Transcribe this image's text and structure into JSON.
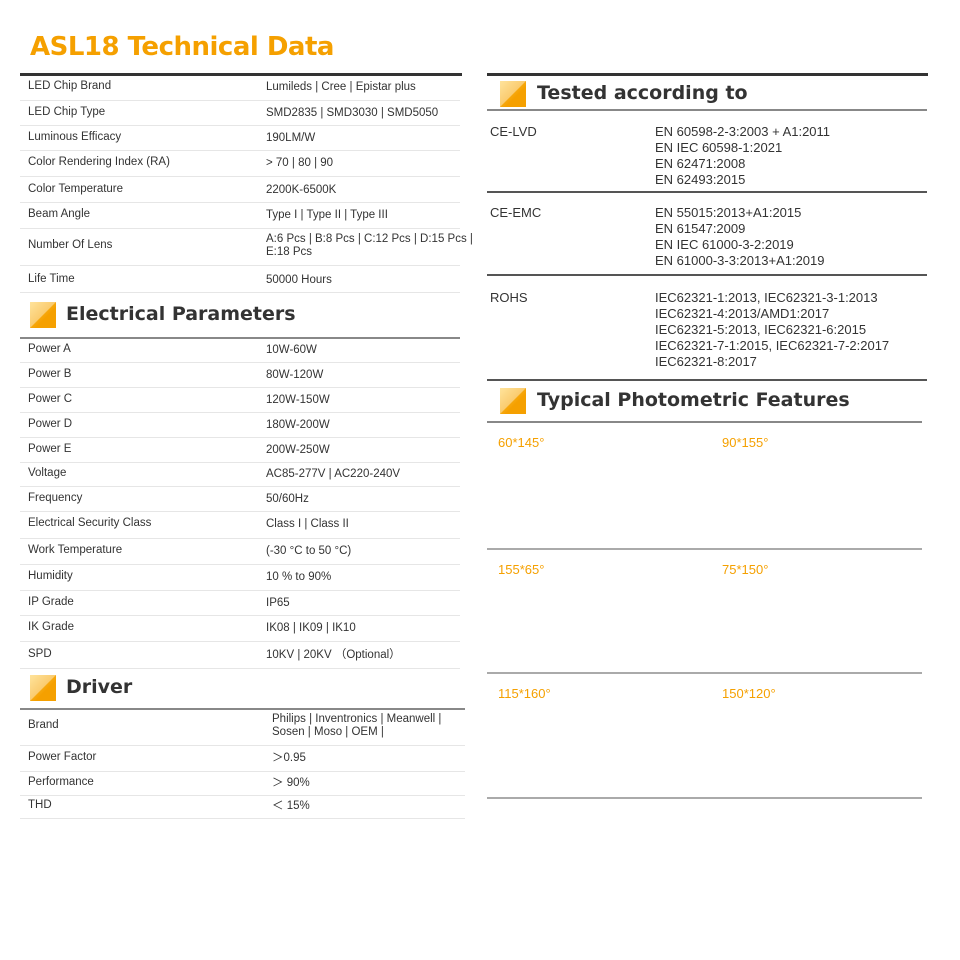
{
  "title": "ASL18 Technical Data",
  "brand_color": "#f5a000",
  "technical_data": [
    {
      "label": "LED Chip Brand",
      "value": [
        "Lumileds | Cree | Epistar plus"
      ]
    },
    {
      "label": "LED Chip Type",
      "value": [
        "SMD2835 | SMD3030 | SMD5050"
      ]
    },
    {
      "label": "Luminous Efficacy",
      "value": [
        "190LM/W"
      ]
    },
    {
      "label": "Color Rendering Index (RA)",
      "value": [
        "> 70  |  80  |   90"
      ]
    },
    {
      "label": "Color Temperature",
      "value": [
        "2200K-6500K"
      ]
    },
    {
      "label": "Beam Angle",
      "value": [
        "Type I  | Type II  | Type III"
      ]
    },
    {
      "label": "Number Of Lens",
      "value": [
        "A:6 Pcs  |  B:8 Pcs  |  C:12 Pcs  |  D:15 Pcs  |",
        "E:18 Pcs"
      ]
    },
    {
      "label": "Life Time",
      "value": [
        "50000 Hours"
      ]
    }
  ],
  "electrical": {
    "title": "Electrical Parameters",
    "rows": [
      {
        "label": "Power A",
        "value": [
          "10W-60W"
        ]
      },
      {
        "label": "Power B",
        "value": [
          "80W-120W"
        ]
      },
      {
        "label": "Power C",
        "value": [
          "120W-150W"
        ]
      },
      {
        "label": "Power D",
        "value": [
          "180W-200W"
        ]
      },
      {
        "label": "Power E",
        "value": [
          "200W-250W"
        ]
      },
      {
        "label": "Voltage",
        "value": [
          "AC85-277V | AC220-240V"
        ]
      },
      {
        "label": "Frequency",
        "value": [
          "50/60Hz"
        ]
      },
      {
        "label": "Electrical Security Class",
        "value": [
          "Class I  |  Class II"
        ]
      },
      {
        "label": "Work Temperature",
        "value": [
          "(-30 °C to 50 °C)"
        ]
      },
      {
        "label": "Humidity",
        "value": [
          "10 % to 90%"
        ]
      },
      {
        "label": "IP Grade",
        "value": [
          "IP65"
        ]
      },
      {
        "label": "IK Grade",
        "value": [
          "IK08 | IK09 | IK10"
        ]
      },
      {
        "label": "SPD",
        "value": [
          "10KV | 20KV  （Optional）"
        ]
      }
    ]
  },
  "driver": {
    "title": "Driver",
    "rows": [
      {
        "label": "Brand",
        "value": [
          "Philips | Inventronics | Meanwell |",
          "Sosen | Moso | OEM |"
        ]
      },
      {
        "label": "Power Factor",
        "value": [
          "＞0.95"
        ]
      },
      {
        "label": "Performance",
        "value": [
          "＞ 90%"
        ]
      },
      {
        "label": "THD",
        "value": [
          "＜ 15%"
        ]
      }
    ]
  },
  "tested": {
    "title": "Tested according to",
    "rows": [
      {
        "label": "CE-LVD",
        "value": [
          "EN 60598-2-3:2003 + A1:2011",
          "EN IEC 60598-1:2021",
          "EN 62471:2008",
          "EN 62493:2015"
        ]
      },
      {
        "label": "CE-EMC",
        "value": [
          "EN 55015:2013+A1:2015",
          "EN 61547:2009",
          "EN IEC 61000-3-2:2019",
          "EN 61000-3-3:2013+A1:2019"
        ]
      },
      {
        "label": "ROHS",
        "value": [
          "IEC62321-1:2013, IEC62321-3-1:2013",
          "IEC62321-4:2013/AMD1:2017",
          "IEC62321-5:2013, IEC62321-6:2015",
          "IEC62321-7-1:2015, IEC62321-7-2:2017",
          "IEC62321-8:2017"
        ]
      }
    ]
  },
  "photometric": {
    "title": "Typical Photometric Features",
    "diagrams": [
      {
        "label": "60*145°"
      },
      {
        "label": "90*155°"
      },
      {
        "label": "155*65°"
      },
      {
        "label": "75*150°"
      },
      {
        "label": "115*160°"
      },
      {
        "label": "150*120°"
      }
    ]
  }
}
